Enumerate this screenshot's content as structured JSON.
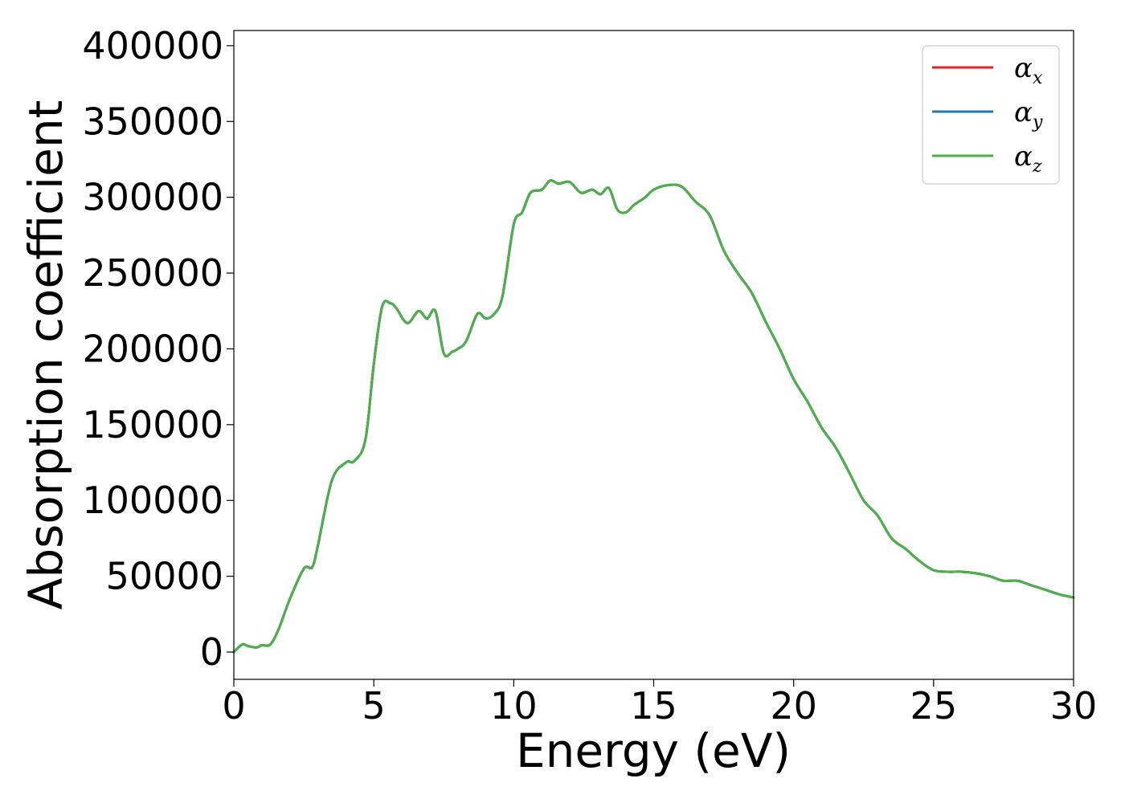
{
  "chart_data": {
    "type": "line",
    "title": "",
    "xlabel": "Energy (eV)",
    "ylabel": "Absorption coefficient",
    "xlim": [
      0,
      30
    ],
    "ylim": [
      -18000,
      410000
    ],
    "xticks": [
      0,
      5,
      10,
      15,
      20,
      25,
      30
    ],
    "yticks": [
      0,
      50000,
      100000,
      150000,
      200000,
      250000,
      300000,
      350000,
      400000
    ],
    "grid": false,
    "legend_placement": "top-right",
    "x": [
      0,
      0.3,
      0.5,
      0.8,
      1.0,
      1.3,
      1.6,
      2.0,
      2.5,
      2.8,
      3.0,
      3.5,
      4.0,
      4.3,
      4.7,
      5.0,
      5.3,
      5.6,
      5.8,
      6.2,
      6.6,
      6.9,
      7.2,
      7.5,
      7.8,
      8.0,
      8.3,
      8.7,
      9.0,
      9.3,
      9.6,
      10.0,
      10.3,
      10.6,
      11.0,
      11.3,
      11.6,
      12.0,
      12.4,
      12.8,
      13.1,
      13.4,
      13.7,
      14.0,
      14.3,
      14.7,
      15.0,
      15.5,
      16.0,
      16.5,
      17.0,
      17.5,
      18.0,
      18.5,
      19.0,
      19.5,
      20.0,
      20.5,
      21.0,
      21.5,
      22.0,
      22.5,
      23.0,
      23.5,
      24.0,
      24.5,
      25.0,
      25.5,
      26.0,
      26.5,
      27.0,
      27.5,
      28.0,
      28.5,
      29.0,
      29.5,
      30.0
    ],
    "series": [
      {
        "name": "αx",
        "symbol": "α",
        "sub": "x",
        "color": "#d62728",
        "values": [
          0,
          5000,
          4000,
          3000,
          4500,
          5000,
          15000,
          35000,
          55000,
          56000,
          70000,
          113000,
          125000,
          126000,
          140000,
          190000,
          228000,
          230000,
          227000,
          217000,
          225000,
          220000,
          225000,
          197000,
          198000,
          200000,
          205000,
          223000,
          220000,
          223000,
          235000,
          282000,
          290000,
          303000,
          305000,
          311000,
          309000,
          310000,
          303000,
          305000,
          302000,
          306000,
          292000,
          290000,
          295000,
          300000,
          305000,
          308000,
          307000,
          297000,
          288000,
          265000,
          250000,
          237000,
          218000,
          200000,
          180000,
          165000,
          148000,
          135000,
          118000,
          100000,
          90000,
          75000,
          68000,
          60000,
          54000,
          53000,
          53000,
          52000,
          50000,
          47000,
          47000,
          44000,
          41000,
          38000,
          36000
        ]
      },
      {
        "name": "αy",
        "symbol": "α",
        "sub": "y",
        "color": "#1f77b4",
        "values": [
          0,
          5000,
          4000,
          3000,
          4500,
          5000,
          15000,
          35000,
          55000,
          56000,
          70000,
          113000,
          125000,
          126000,
          140000,
          190000,
          228000,
          230000,
          227000,
          217000,
          225000,
          220000,
          225000,
          197000,
          198000,
          200000,
          205000,
          223000,
          220000,
          223000,
          235000,
          282000,
          290000,
          303000,
          305000,
          311000,
          309000,
          310000,
          303000,
          305000,
          302000,
          306000,
          292000,
          290000,
          295000,
          300000,
          305000,
          308000,
          307000,
          297000,
          288000,
          265000,
          250000,
          237000,
          218000,
          200000,
          180000,
          165000,
          148000,
          135000,
          118000,
          100000,
          90000,
          75000,
          68000,
          60000,
          54000,
          53000,
          53000,
          52000,
          50000,
          47000,
          47000,
          44000,
          41000,
          38000,
          36000
        ]
      },
      {
        "name": "αz",
        "symbol": "α",
        "sub": "z",
        "color": "#4daf4a",
        "values": [
          0,
          5000,
          4000,
          3000,
          4500,
          5000,
          15000,
          35000,
          55000,
          56000,
          70000,
          113000,
          125000,
          126000,
          140000,
          190000,
          228000,
          230000,
          227000,
          217000,
          225000,
          220000,
          225000,
          197000,
          198000,
          200000,
          205000,
          223000,
          220000,
          223000,
          235000,
          282000,
          290000,
          303000,
          305000,
          311000,
          309000,
          310000,
          303000,
          305000,
          302000,
          306000,
          292000,
          290000,
          295000,
          300000,
          305000,
          308000,
          307000,
          297000,
          288000,
          265000,
          250000,
          237000,
          218000,
          200000,
          180000,
          165000,
          148000,
          135000,
          118000,
          100000,
          90000,
          75000,
          68000,
          60000,
          54000,
          53000,
          53000,
          52000,
          50000,
          47000,
          47000,
          44000,
          41000,
          38000,
          36000
        ]
      }
    ]
  }
}
